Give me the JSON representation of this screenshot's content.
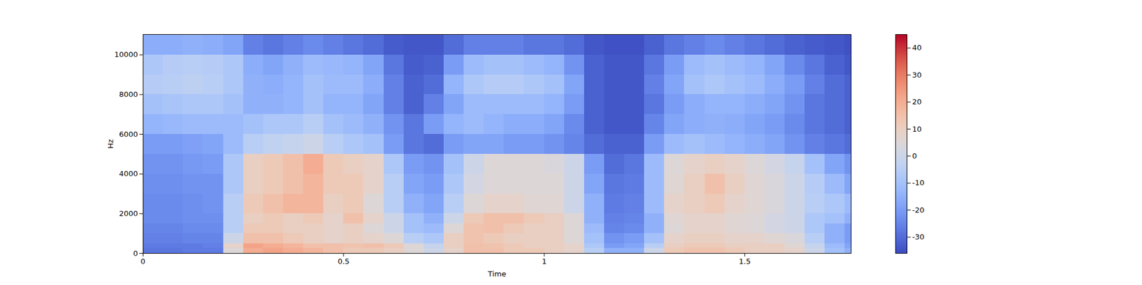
{
  "chart_data": {
    "type": "heatmap",
    "xlabel": "Time",
    "ylabel": "Hz",
    "xlim": [
      0,
      1.765
    ],
    "ylim": [
      0,
      11025
    ],
    "xticks": [
      0,
      0.5,
      1,
      1.5
    ],
    "yticks": [
      0,
      2000,
      4000,
      6000,
      8000,
      10000
    ],
    "time_edges": [
      0,
      0.05,
      0.1,
      0.15,
      0.2,
      0.25,
      0.3,
      0.35,
      0.4,
      0.45,
      0.5,
      0.55,
      0.6,
      0.65,
      0.7,
      0.75,
      0.8,
      0.85,
      0.9,
      0.95,
      1,
      1.05,
      1.1,
      1.15,
      1.2,
      1.25,
      1.3,
      1.35,
      1.4,
      1.45,
      1.5,
      1.55,
      1.6,
      1.65,
      1.7,
      1.75,
      1.765
    ],
    "freq_edges": [
      0,
      250,
      500,
      1000,
      1500,
      2000,
      3000,
      4000,
      5000,
      6000,
      7000,
      8000,
      9000,
      10000,
      11025
    ],
    "cells": [
      [
        -28,
        -28,
        -27,
        -27,
        5,
        20,
        22,
        20,
        18,
        15,
        12,
        12,
        10,
        5,
        0,
        8,
        15,
        15,
        12,
        12,
        10,
        8,
        -5,
        -15,
        -15,
        0,
        12,
        14,
        14,
        12,
        10,
        10,
        8,
        0,
        -10,
        -15
      ],
      [
        -27,
        -27,
        -27,
        -26,
        8,
        22,
        20,
        18,
        15,
        15,
        14,
        15,
        12,
        5,
        -2,
        10,
        15,
        14,
        12,
        10,
        10,
        8,
        -8,
        -20,
        -18,
        -5,
        10,
        12,
        12,
        10,
        10,
        10,
        6,
        -2,
        -12,
        -18
      ],
      [
        -26,
        -26,
        -25,
        -25,
        0,
        15,
        15,
        12,
        10,
        8,
        10,
        8,
        5,
        -5,
        -8,
        10,
        14,
        12,
        10,
        10,
        10,
        5,
        -10,
        -22,
        -20,
        -10,
        8,
        10,
        10,
        8,
        8,
        6,
        4,
        -5,
        -15,
        -20
      ],
      [
        -25,
        -25,
        -24,
        -24,
        -5,
        12,
        12,
        10,
        10,
        8,
        10,
        5,
        0,
        -10,
        -12,
        5,
        14,
        15,
        12,
        10,
        10,
        5,
        -12,
        -25,
        -24,
        -15,
        5,
        8,
        8,
        6,
        5,
        2,
        0,
        -8,
        -15,
        -20
      ],
      [
        -24,
        -24,
        -23,
        -23,
        -5,
        10,
        12,
        10,
        12,
        8,
        15,
        8,
        0,
        -10,
        -15,
        0,
        12,
        15,
        15,
        12,
        10,
        5,
        -15,
        -26,
        -25,
        -15,
        6,
        8,
        8,
        6,
        5,
        2,
        0,
        -8,
        -10,
        -15
      ],
      [
        -24,
        -24,
        -23,
        -22,
        -5,
        12,
        15,
        18,
        18,
        10,
        12,
        5,
        -5,
        -15,
        -18,
        -5,
        5,
        8,
        8,
        6,
        6,
        0,
        -15,
        -27,
        -26,
        -12,
        8,
        10,
        12,
        8,
        6,
        4,
        0,
        -5,
        -8,
        -12
      ],
      [
        -23,
        -23,
        -22,
        -22,
        -8,
        10,
        12,
        15,
        18,
        12,
        12,
        8,
        -5,
        -18,
        -20,
        -8,
        2,
        5,
        5,
        5,
        5,
        0,
        -18,
        -28,
        -27,
        -12,
        6,
        10,
        15,
        10,
        6,
        4,
        0,
        -6,
        -12,
        -18
      ],
      [
        -22,
        -22,
        -21,
        -20,
        -8,
        10,
        12,
        15,
        20,
        12,
        10,
        8,
        -8,
        -20,
        -22,
        -10,
        0,
        5,
        5,
        5,
        4,
        0,
        -20,
        -30,
        -28,
        -12,
        5,
        8,
        10,
        8,
        5,
        2,
        -2,
        -10,
        -18,
        -22
      ],
      [
        -20,
        -20,
        -19,
        -18,
        -12,
        -5,
        -3,
        -2,
        0,
        -5,
        -8,
        -10,
        -20,
        -28,
        -30,
        -20,
        -18,
        -18,
        -20,
        -20,
        -22,
        -25,
        -30,
        -32,
        -32,
        -20,
        -12,
        -10,
        -12,
        -14,
        -16,
        -18,
        -22,
        -26,
        -28,
        -30
      ],
      [
        -14,
        -13,
        -12,
        -12,
        -12,
        -10,
        -8,
        -8,
        -5,
        -10,
        -12,
        -15,
        -22,
        -28,
        -20,
        -14,
        -12,
        -14,
        -16,
        -16,
        -18,
        -24,
        -32,
        -34,
        -34,
        -25,
        -18,
        -16,
        -15,
        -16,
        -18,
        -20,
        -24,
        -28,
        -30,
        -32
      ],
      [
        -10,
        -9,
        -8,
        -8,
        -10,
        -15,
        -15,
        -14,
        -10,
        -14,
        -14,
        -18,
        -26,
        -32,
        -26,
        -18,
        -12,
        -12,
        -12,
        -12,
        -14,
        -20,
        -32,
        -34,
        -34,
        -28,
        -20,
        -16,
        -14,
        -14,
        -16,
        -18,
        -22,
        -28,
        -30,
        -32
      ],
      [
        -6,
        -5,
        -4,
        -5,
        -8,
        -15,
        -16,
        -14,
        -10,
        -12,
        -12,
        -16,
        -26,
        -32,
        -30,
        -14,
        -8,
        -6,
        -6,
        -8,
        -10,
        -18,
        -32,
        -34,
        -34,
        -26,
        -18,
        -10,
        -8,
        -10,
        -12,
        -16,
        -20,
        -26,
        -30,
        -32
      ],
      [
        -8,
        -6,
        -5,
        -6,
        -8,
        -16,
        -18,
        -15,
        -12,
        -13,
        -14,
        -18,
        -28,
        -33,
        -32,
        -20,
        -12,
        -10,
        -10,
        -12,
        -14,
        -22,
        -32,
        -34,
        -34,
        -28,
        -20,
        -12,
        -10,
        -12,
        -14,
        -18,
        -24,
        -28,
        -32,
        -34
      ],
      [
        -16,
        -16,
        -15,
        -16,
        -18,
        -26,
        -28,
        -26,
        -24,
        -26,
        -28,
        -30,
        -33,
        -34,
        -34,
        -30,
        -26,
        -26,
        -26,
        -28,
        -28,
        -30,
        -34,
        -35,
        -35,
        -32,
        -28,
        -26,
        -24,
        -26,
        -28,
        -30,
        -32,
        -33,
        -34,
        -35
      ]
    ],
    "colorbar": {
      "range": [
        -36,
        45
      ],
      "ticks": [
        -30,
        -20,
        -10,
        0,
        10,
        20,
        30,
        40
      ]
    }
  }
}
